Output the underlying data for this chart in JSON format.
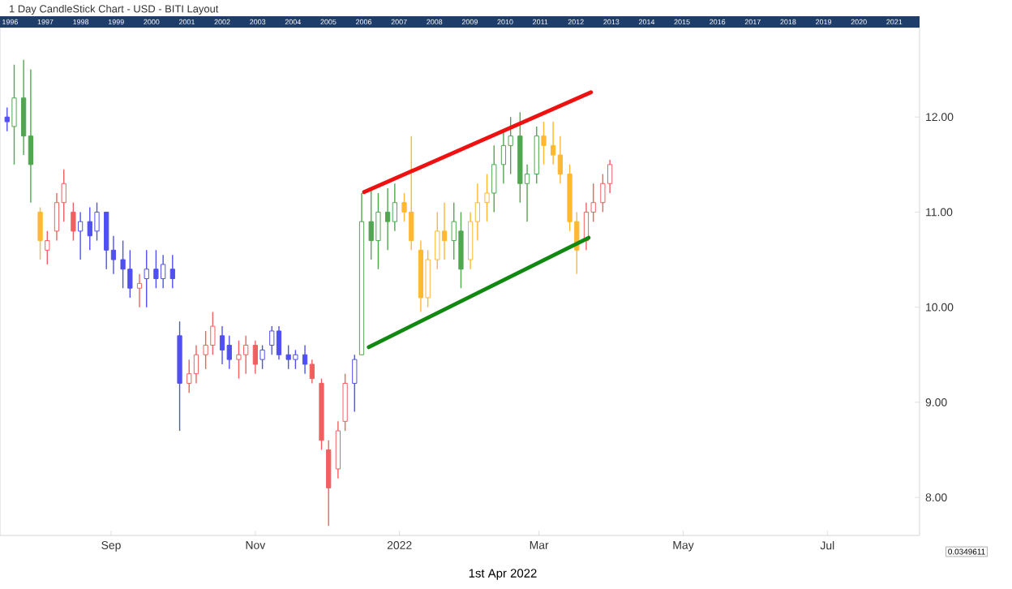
{
  "chart_data": {
    "type": "candlestick",
    "title": "1 Day CandleStick Chart - USD - BITI Layout",
    "annotations": [
      "1st Apr 2022",
      "0.0349611",
      "1996",
      "1997",
      "1998",
      "1999",
      "2000",
      "2001",
      "2002",
      "2003",
      "2004",
      "2005",
      "2006",
      "2007",
      "2008",
      "2009",
      "2010",
      "2011",
      "2012",
      "2013",
      "2014",
      "2015",
      "2016",
      "2017",
      "2018",
      "2019",
      "2020",
      "2021"
    ],
    "xlim": [
      "2021-07-16",
      "2022-08-09"
    ],
    "xticks": [
      {
        "value": "2021-09-01",
        "label": "Sep"
      },
      {
        "value": "2021-11-01",
        "label": "Nov"
      },
      {
        "value": "2022-01-01",
        "label": "2022"
      },
      {
        "value": "2022-03-01",
        "label": "Mar"
      },
      {
        "value": "2022-05-01",
        "label": "May"
      },
      {
        "value": "2022-07-01",
        "label": "Jul"
      }
    ],
    "ylim": [
      7.6,
      12.94
    ],
    "yticks": [
      {
        "value": 8,
        "label": "8.00"
      },
      {
        "value": 9,
        "label": "9.00"
      },
      {
        "value": 10,
        "label": "10.00"
      },
      {
        "value": 11,
        "label": "11.00"
      },
      {
        "value": 12,
        "label": "12.00"
      }
    ],
    "series": [
      {
        "x": [
          "2021-07-19",
          "2021-07-22",
          "2021-07-26",
          "2021-07-29",
          "2021-08-02",
          "2021-08-05",
          "2021-08-09",
          "2021-08-12",
          "2021-08-16",
          "2021-08-19",
          "2021-08-23",
          "2021-08-26",
          "2021-08-30",
          "2021-09-02",
          "2021-09-06",
          "2021-09-09",
          "2021-09-13",
          "2021-09-16",
          "2021-09-20",
          "2021-09-23",
          "2021-09-27",
          "2021-09-30",
          "2021-10-04",
          "2021-10-07",
          "2021-10-11",
          "2021-10-14",
          "2021-10-18",
          "2021-10-21",
          "2021-10-25",
          "2021-10-28",
          "2021-11-01",
          "2021-11-04",
          "2021-11-08",
          "2021-11-11",
          "2021-11-15",
          "2021-11-18",
          "2021-11-22",
          "2021-11-25",
          "2021-11-29",
          "2021-12-02",
          "2021-12-06",
          "2021-12-09",
          "2021-12-13",
          "2021-12-16",
          "2021-12-20",
          "2021-12-23",
          "2021-12-27",
          "2021-12-30",
          "2022-01-03",
          "2022-01-06",
          "2022-01-10",
          "2022-01-13",
          "2022-01-17",
          "2022-01-20",
          "2022-01-24",
          "2022-01-27",
          "2022-01-31",
          "2022-02-03",
          "2022-02-07",
          "2022-02-10",
          "2022-02-14",
          "2022-02-17",
          "2022-02-21",
          "2022-02-24",
          "2022-02-28",
          "2022-03-03",
          "2022-03-07",
          "2022-03-10",
          "2022-03-14",
          "2022-03-17",
          "2022-03-21",
          "2022-03-24",
          "2022-03-28",
          "2022-03-31"
        ],
        "ohlc": [
          [
            12.0,
            12.1,
            11.85,
            11.95
          ],
          [
            11.9,
            12.55,
            11.5,
            12.2
          ],
          [
            12.2,
            12.6,
            11.6,
            11.8
          ],
          [
            11.8,
            12.5,
            11.1,
            11.5
          ],
          [
            11.0,
            11.05,
            10.5,
            10.7
          ],
          [
            10.6,
            10.8,
            10.45,
            10.7
          ],
          [
            10.8,
            11.2,
            10.7,
            11.1
          ],
          [
            11.1,
            11.45,
            10.9,
            11.3
          ],
          [
            11.0,
            11.1,
            10.7,
            10.8
          ],
          [
            10.8,
            11.0,
            10.5,
            10.9
          ],
          [
            10.9,
            11.05,
            10.6,
            10.75
          ],
          [
            10.8,
            11.1,
            10.7,
            11.0
          ],
          [
            11.0,
            11.0,
            10.4,
            10.6
          ],
          [
            10.6,
            10.75,
            10.35,
            10.5
          ],
          [
            10.5,
            10.7,
            10.2,
            10.4
          ],
          [
            10.4,
            10.6,
            10.1,
            10.2
          ],
          [
            10.2,
            10.35,
            10.0,
            10.25
          ],
          [
            10.3,
            10.6,
            10.0,
            10.4
          ],
          [
            10.4,
            10.6,
            10.2,
            10.3
          ],
          [
            10.3,
            10.55,
            10.2,
            10.45
          ],
          [
            10.4,
            10.55,
            10.2,
            10.3
          ],
          [
            9.7,
            9.85,
            8.7,
            9.2
          ],
          [
            9.2,
            9.45,
            9.1,
            9.3
          ],
          [
            9.3,
            9.6,
            9.2,
            9.5
          ],
          [
            9.5,
            9.75,
            9.35,
            9.6
          ],
          [
            9.6,
            9.95,
            9.5,
            9.8
          ],
          [
            9.7,
            9.8,
            9.4,
            9.55
          ],
          [
            9.6,
            9.7,
            9.35,
            9.45
          ],
          [
            9.45,
            9.65,
            9.25,
            9.5
          ],
          [
            9.5,
            9.7,
            9.3,
            9.6
          ],
          [
            9.6,
            9.65,
            9.3,
            9.4
          ],
          [
            9.45,
            9.6,
            9.35,
            9.55
          ],
          [
            9.6,
            9.8,
            9.5,
            9.75
          ],
          [
            9.75,
            9.8,
            9.45,
            9.5
          ],
          [
            9.5,
            9.6,
            9.35,
            9.45
          ],
          [
            9.45,
            9.55,
            9.35,
            9.5
          ],
          [
            9.5,
            9.6,
            9.3,
            9.4
          ],
          [
            9.4,
            9.45,
            9.2,
            9.25
          ],
          [
            9.2,
            9.25,
            8.5,
            8.6
          ],
          [
            8.5,
            8.6,
            7.7,
            8.1
          ],
          [
            8.3,
            8.8,
            8.2,
            8.7
          ],
          [
            8.8,
            9.3,
            8.7,
            9.2
          ],
          [
            9.2,
            9.5,
            8.9,
            9.45
          ],
          [
            9.5,
            11.2,
            9.5,
            10.9
          ],
          [
            10.9,
            11.25,
            10.5,
            10.7
          ],
          [
            10.7,
            11.2,
            10.4,
            11.0
          ],
          [
            11.0,
            11.25,
            10.6,
            10.9
          ],
          [
            10.9,
            11.3,
            10.8,
            11.1
          ],
          [
            11.1,
            11.2,
            10.9,
            11.0
          ],
          [
            11.0,
            11.8,
            10.6,
            10.7
          ],
          [
            10.6,
            10.7,
            9.95,
            10.1
          ],
          [
            10.1,
            10.6,
            10.0,
            10.5
          ],
          [
            10.5,
            11.0,
            10.4,
            10.8
          ],
          [
            10.8,
            11.1,
            10.5,
            10.7
          ],
          [
            10.7,
            11.1,
            10.5,
            10.9
          ],
          [
            10.8,
            11.0,
            10.2,
            10.4
          ],
          [
            10.5,
            11.0,
            10.4,
            10.9
          ],
          [
            10.9,
            11.3,
            10.7,
            11.1
          ],
          [
            11.1,
            11.4,
            10.9,
            11.2
          ],
          [
            11.2,
            11.7,
            11.0,
            11.5
          ],
          [
            11.5,
            11.85,
            11.3,
            11.7
          ],
          [
            11.7,
            12.0,
            11.4,
            11.8
          ],
          [
            11.8,
            12.05,
            11.1,
            11.3
          ],
          [
            11.3,
            11.5,
            10.9,
            11.4
          ],
          [
            11.4,
            11.9,
            11.3,
            11.8
          ],
          [
            11.8,
            11.95,
            11.5,
            11.7
          ],
          [
            11.7,
            11.95,
            11.5,
            11.6
          ],
          [
            11.6,
            11.8,
            11.3,
            11.4
          ],
          [
            11.4,
            11.5,
            10.8,
            10.9
          ],
          [
            10.9,
            11.0,
            10.35,
            10.6
          ],
          [
            10.7,
            11.1,
            10.6,
            11.0
          ],
          [
            11.0,
            11.3,
            10.9,
            11.1
          ],
          [
            11.1,
            11.4,
            11.0,
            11.3
          ],
          [
            11.3,
            11.55,
            11.2,
            11.5
          ]
        ],
        "colors": [
          "#5050f0",
          "#4fa84f",
          "#4fa84f",
          "#4fa84f",
          "#ffb833",
          "#f06060",
          "#f06060",
          "#f06060",
          "#f06060",
          "#5050f0",
          "#5050f0",
          "#5050f0",
          "#5050f0",
          "#5050f0",
          "#5050f0",
          "#5050f0",
          "#f06060",
          "#5050f0",
          "#5050f0",
          "#5050f0",
          "#5050f0",
          "#5050f0",
          "#f06060",
          "#f06060",
          "#f06060",
          "#f06060",
          "#5050f0",
          "#5050f0",
          "#f06060",
          "#f06060",
          "#f06060",
          "#5050f0",
          "#5050f0",
          "#5050f0",
          "#5050f0",
          "#5050f0",
          "#5050f0",
          "#f06060",
          "#f06060",
          "#f06060",
          "#f06060",
          "#f06060",
          "#5050f0",
          "#4fa84f",
          "#4fa84f",
          "#4fa84f",
          "#4fa84f",
          "#4fa84f",
          "#ffb833",
          "#ffb833",
          "#ffb833",
          "#ffb833",
          "#ffb833",
          "#ffb833",
          "#4fa84f",
          "#4fa84f",
          "#ffb833",
          "#ffb833",
          "#ffb833",
          "#4fa84f",
          "#4fa84f",
          "#4fa84f",
          "#4fa84f",
          "#4fa84f",
          "#4fa84f",
          "#ffb833",
          "#ffb833",
          "#ffb833",
          "#ffb833",
          "#ffb833",
          "#f06060",
          "#f06060",
          "#f06060",
          "#f06060"
        ]
      },
      {
        "type": "line",
        "color": "#ee1111",
        "x": [
          "2021-12-17",
          "2022-03-23"
        ],
        "values": [
          11.21,
          12.26
        ]
      },
      {
        "type": "line",
        "color": "#118811",
        "x": [
          "2021-12-19",
          "2022-03-22"
        ],
        "values": [
          9.58,
          10.73
        ]
      }
    ]
  }
}
